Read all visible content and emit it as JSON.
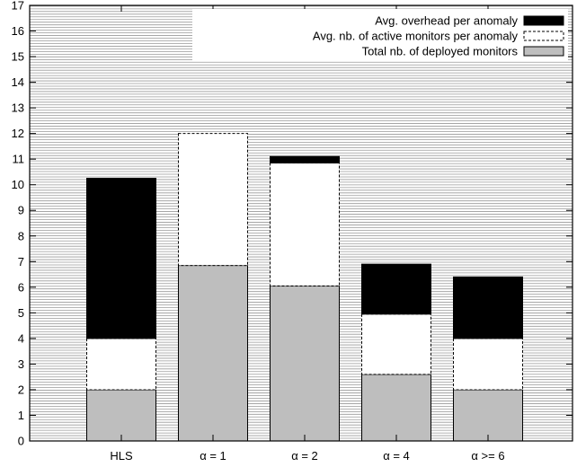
{
  "chart_data": {
    "type": "bar",
    "stacked": true,
    "categories": [
      "HLS",
      "α = 1",
      "α = 2",
      "α = 4",
      "α >= 6"
    ],
    "series": [
      {
        "name": "Total nb. of deployed monitors",
        "values": [
          2.0,
          6.85,
          6.05,
          2.6,
          2.0
        ],
        "color": "#bebebe",
        "style": "solid-gray"
      },
      {
        "name": "Avg. nb. of active monitors per anomaly",
        "values": [
          2.0,
          5.15,
          4.8,
          2.35,
          2.0
        ],
        "color": "#ffffff",
        "style": "white-dashed-outline"
      },
      {
        "name": "Avg. overhead per anomaly",
        "values": [
          6.25,
          0.0,
          0.25,
          1.95,
          2.4
        ],
        "color": "#000000",
        "style": "solid-black"
      }
    ],
    "ylim": [
      0,
      17
    ],
    "yticks": [
      0,
      1,
      2,
      3,
      4,
      5,
      6,
      7,
      8,
      9,
      10,
      11,
      12,
      13,
      14,
      15,
      16,
      17
    ],
    "grid": "horizontal-dense",
    "legend_position": "top-right"
  }
}
